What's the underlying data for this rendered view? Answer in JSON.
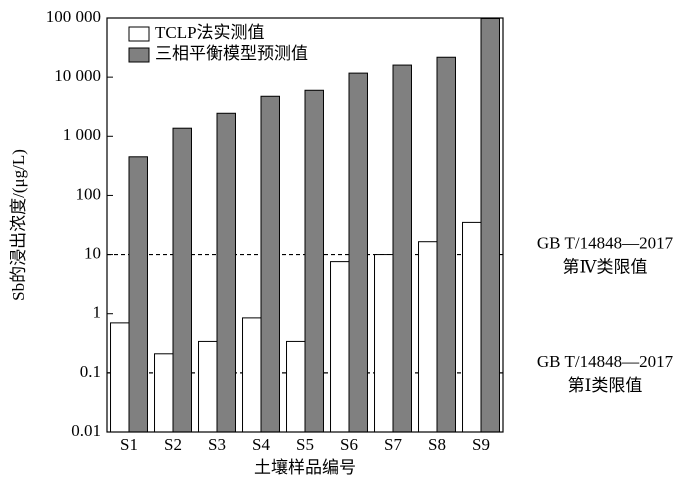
{
  "chart_data": {
    "type": "bar",
    "y_label": "Sb的浸出浓度/(μg/L)",
    "x_label": "土壤样品编号",
    "categories": [
      "S1",
      "S2",
      "S3",
      "S4",
      "S5",
      "S6",
      "S7",
      "S8",
      "S9"
    ],
    "series": [
      {
        "name": "TCLP法实测值",
        "color": "#ffffff",
        "values": [
          0.7,
          0.21,
          0.34,
          0.85,
          0.34,
          7.6,
          10,
          16.5,
          35
        ]
      },
      {
        "name": "三相平衡模型预测值",
        "color": "#808080",
        "values": [
          450,
          1370,
          2450,
          4750,
          6000,
          11700,
          16000,
          21700,
          98000
        ]
      }
    ],
    "log_scale": true,
    "ylim": [
      0.01,
      100000
    ],
    "yticks": [
      0.01,
      0.1,
      1,
      10,
      100,
      {
        "value": 1000,
        "label": "1 000"
      },
      {
        "value": 10000,
        "label": "10 000"
      },
      {
        "value": 100000,
        "label": "100 000"
      }
    ],
    "legend": "upper left",
    "annotations": [
      {
        "y": 10,
        "lines": [
          "GB T/14848—2017",
          "第Ⅳ类限值"
        ]
      },
      {
        "y": 0.1,
        "lines": [
          "GB T/14848—2017",
          "第Ⅰ类限值"
        ]
      }
    ]
  }
}
